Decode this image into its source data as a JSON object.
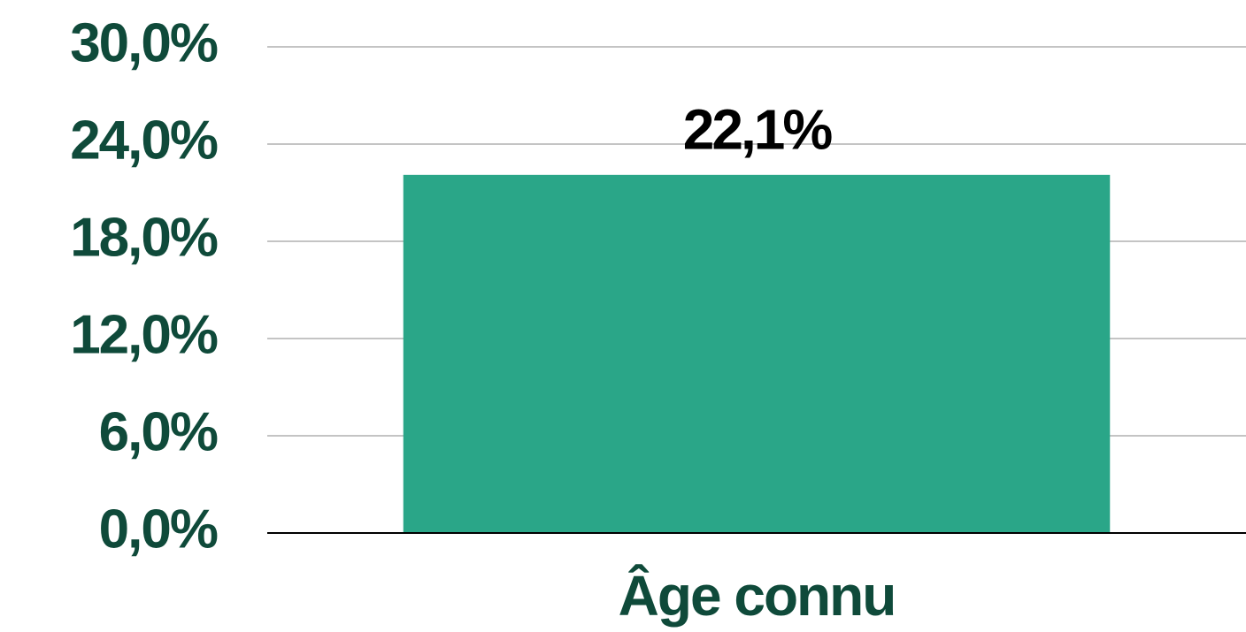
{
  "chart_data": {
    "type": "bar",
    "categories": [
      "Âge connu"
    ],
    "values": [
      22.1
    ],
    "value_labels": [
      "22,1%"
    ],
    "color": "#2aa688",
    "ylim": [
      0,
      30
    ],
    "yticks": [
      {
        "value": 0,
        "label": "0,0%"
      },
      {
        "value": 6,
        "label": "6,0%"
      },
      {
        "value": 12,
        "label": "12,0%"
      },
      {
        "value": 18,
        "label": "18,0%"
      },
      {
        "value": 24,
        "label": "24,0%"
      },
      {
        "value": 30,
        "label": "30,0%"
      }
    ],
    "grid": true
  }
}
